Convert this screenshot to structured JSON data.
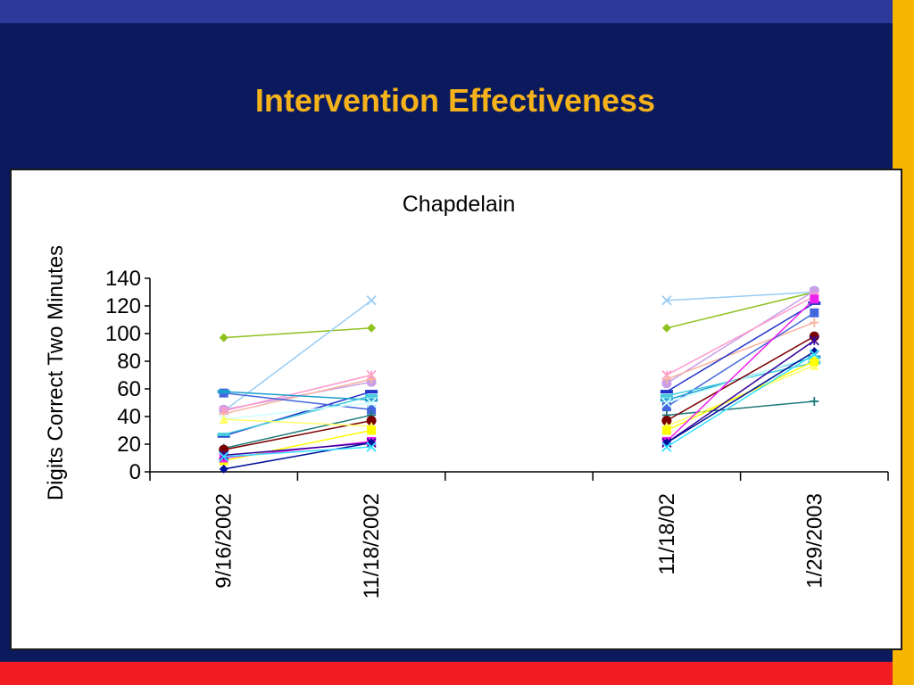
{
  "slide": {
    "title": "Intervention Effectiveness"
  },
  "colors": {
    "background": "#0a1a5c",
    "top_bar": "#2e3a9a",
    "right_stripe": "#f7b500",
    "bottom_stripe": "#f21d23",
    "title_color": "#f5b21a"
  },
  "chart_data": {
    "type": "line",
    "title": "Chapdelain",
    "xlabel": "",
    "ylabel": "Digits Correct Two Minutes",
    "ylim": [
      0,
      140
    ],
    "yticks": [
      0,
      20,
      40,
      60,
      80,
      100,
      120,
      140
    ],
    "categories": [
      "9/16/2002",
      "11/18/2002",
      "",
      "11/18/02",
      "1/29/2003"
    ],
    "grid": false,
    "legend": "none",
    "series": [
      {
        "color": "#8dc21f",
        "marker": "diamond",
        "values": [
          97,
          104,
          null,
          104,
          130
        ]
      },
      {
        "color": "#99ccf3",
        "marker": "x",
        "values": [
          44,
          124,
          null,
          124,
          130
        ]
      },
      {
        "color": "#c9a0e8",
        "marker": "circle",
        "values": [
          45,
          65,
          null,
          64,
          131
        ]
      },
      {
        "color": "#ff99cc",
        "marker": "star",
        "values": [
          44,
          70,
          null,
          70,
          127
        ]
      },
      {
        "color": "#f7b2a0",
        "marker": "plus",
        "values": [
          42,
          67,
          null,
          67,
          108
        ]
      },
      {
        "color": "#2233cc",
        "marker": "bar",
        "values": [
          26,
          58,
          null,
          58,
          122
        ]
      },
      {
        "color": "#4466dd",
        "marker": "square",
        "values": [
          57,
          45,
          null,
          47,
          115
        ]
      },
      {
        "color": "#19a0d0",
        "marker": "bar",
        "values": [
          58,
          52,
          null,
          52,
          83
        ]
      },
      {
        "color": "#44ccdd",
        "marker": "bar",
        "values": [
          27,
          55,
          null,
          55,
          79
        ]
      },
      {
        "color": "#ccffff",
        "marker": "x",
        "values": [
          38,
          50,
          null,
          50,
          84
        ]
      },
      {
        "color": "#1d7a7a",
        "marker": "plus",
        "values": [
          17,
          41,
          null,
          41,
          51
        ]
      },
      {
        "color": "#7a0000",
        "marker": "circle",
        "values": [
          16,
          37,
          null,
          37,
          98
        ]
      },
      {
        "color": "#ffff66",
        "marker": "triangle",
        "values": [
          38,
          33,
          null,
          33,
          77
        ]
      },
      {
        "color": "#ffff00",
        "marker": "square",
        "values": [
          8,
          30,
          null,
          30,
          80
        ]
      },
      {
        "color": "#ee22ee",
        "marker": "square",
        "values": [
          10,
          22,
          null,
          22,
          125
        ]
      },
      {
        "color": "#330099",
        "marker": "star",
        "values": [
          12,
          21,
          null,
          21,
          95
        ]
      },
      {
        "color": "#001199",
        "marker": "diamond",
        "values": [
          2,
          21,
          null,
          21,
          87
        ]
      },
      {
        "color": "#33e0ff",
        "marker": "x",
        "values": [
          11,
          18,
          null,
          18,
          85
        ]
      }
    ]
  }
}
